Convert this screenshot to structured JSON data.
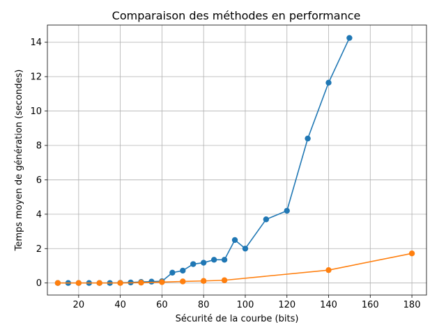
{
  "chart_data": {
    "type": "line",
    "title": "Comparaison des méthodes en performance",
    "xlabel": "Sécurité de la courbe (bits)",
    "ylabel": "Temps moyen de génération (secondes)",
    "xlim": [
      5,
      187
    ],
    "ylim": [
      -0.7,
      15
    ],
    "xticks": [
      20,
      40,
      60,
      80,
      100,
      120,
      140,
      160,
      180
    ],
    "yticks": [
      0,
      2,
      4,
      6,
      8,
      10,
      12,
      14
    ],
    "grid": true,
    "series": [
      {
        "color": "#1f77b4",
        "x": [
          10,
          15,
          20,
          25,
          30,
          35,
          40,
          45,
          50,
          55,
          60,
          65,
          70,
          75,
          80,
          85,
          90,
          95,
          100,
          110,
          120,
          130,
          140,
          150
        ],
        "y": [
          0.0,
          0.0,
          0.0,
          0.0,
          0.0,
          0.0,
          0.01,
          0.03,
          0.06,
          0.08,
          0.1,
          0.6,
          0.72,
          1.1,
          1.18,
          1.35,
          1.35,
          2.5,
          2.0,
          3.7,
          4.2,
          8.4,
          11.65,
          14.25
        ]
      },
      {
        "color": "#ff7f0e",
        "x": [
          10,
          20,
          30,
          40,
          50,
          60,
          70,
          80,
          90,
          140,
          180
        ],
        "y": [
          0.0,
          0.0,
          0.0,
          0.0,
          0.02,
          0.05,
          0.09,
          0.12,
          0.16,
          0.75,
          1.72
        ]
      }
    ]
  }
}
